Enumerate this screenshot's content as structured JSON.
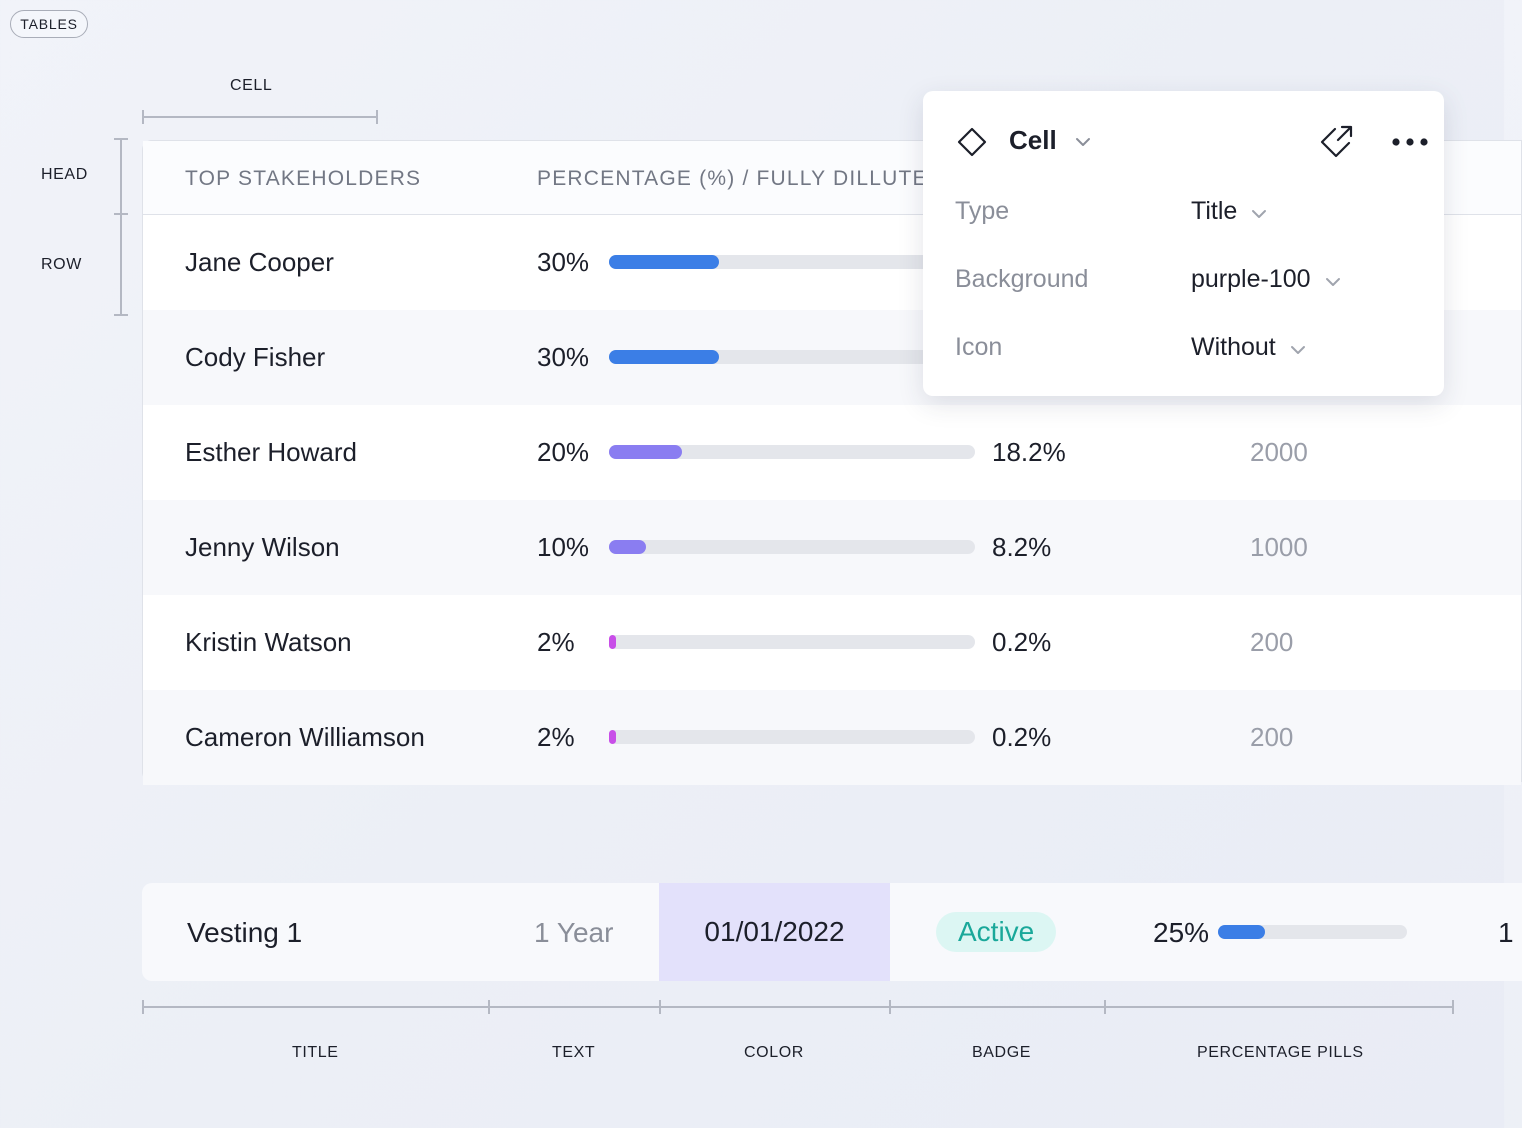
{
  "tag_label": "TABLES",
  "annotations": {
    "cell": "CELL",
    "head": "HEAD",
    "row": "ROW",
    "bottom": [
      "TITLE",
      "TEXT",
      "COLOR",
      "BADGE",
      "PERCENTAGE PILLS"
    ]
  },
  "table": {
    "headers": [
      "TOP STAKEHOLDERS",
      "PERCENTAGE (%) / FULLY DILLUTED"
    ],
    "rows": [
      {
        "name": "Jane Cooper",
        "percentage": "30%",
        "progress": 0.3,
        "bar_color": "#3b7ee6",
        "diluted": "",
        "shares": ""
      },
      {
        "name": "Cody Fisher",
        "percentage": "30%",
        "progress": 0.3,
        "bar_color": "#3b7ee6",
        "diluted": "",
        "shares": ""
      },
      {
        "name": "Esther Howard",
        "percentage": "20%",
        "progress": 0.2,
        "bar_color": "#8a7df1",
        "diluted": "18.2%",
        "shares": "2000"
      },
      {
        "name": "Jenny Wilson",
        "percentage": "10%",
        "progress": 0.1,
        "bar_color": "#8a7df1",
        "diluted": "8.2%",
        "shares": "1000"
      },
      {
        "name": "Kristin Watson",
        "percentage": "2%",
        "progress": 0.02,
        "bar_color": "#c84ee8",
        "diluted": "0.2%",
        "shares": "200"
      },
      {
        "name": "Cameron Williamson",
        "percentage": "2%",
        "progress": 0.02,
        "bar_color": "#c84ee8",
        "diluted": "0.2%",
        "shares": "200"
      }
    ]
  },
  "panel": {
    "title": "Cell",
    "properties": [
      {
        "label": "Type",
        "value": "Title"
      },
      {
        "label": "Background",
        "value": "purple-100"
      },
      {
        "label": "Icon",
        "value": "Without"
      }
    ]
  },
  "vesting": {
    "title": "Vesting 1",
    "text": "1 Year",
    "date": "01/01/2022",
    "badge": "Active",
    "percentage": "25%",
    "progress": 0.25,
    "bar_color": "#3b7ee6",
    "extra": "1"
  }
}
